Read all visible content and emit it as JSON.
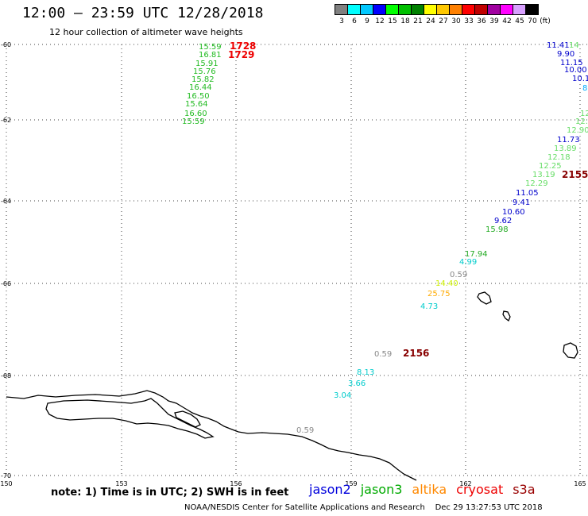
{
  "header": {
    "title": "12:00 – 23:59 UTC 12/28/2018",
    "subtitle": "12 hour collection of altimeter wave heights"
  },
  "legend": {
    "colors": [
      "#808080",
      "#00ffff",
      "#00c8ff",
      "#0000ff",
      "#00ff00",
      "#00c000",
      "#008000",
      "#ffff00",
      "#ffc800",
      "#ff8000",
      "#ff0000",
      "#c00000",
      "#a000a0",
      "#ff00ff",
      "#d8a0ff",
      "#000000"
    ],
    "labels": [
      "3",
      "6",
      "9",
      "12",
      "15",
      "18",
      "21",
      "24",
      "27",
      "30",
      "33",
      "36",
      "39",
      "42",
      "45",
      "70",
      "(ft)"
    ]
  },
  "map": {
    "lat_labels": [
      "-60",
      "-62",
      "-64",
      "-66",
      "-68",
      "-70"
    ],
    "lon_labels": [
      "150",
      "153",
      "156",
      "159",
      "162",
      "165"
    ]
  },
  "observations": [
    {
      "text": "15.59",
      "color": "#22bb22"
    },
    {
      "text": "16.81",
      "color": "#22bb22"
    },
    {
      "text": "15.91",
      "color": "#22bb22"
    },
    {
      "text": "15.76",
      "color": "#22bb22"
    },
    {
      "text": "15.82",
      "color": "#22bb22"
    },
    {
      "text": "16.44",
      "color": "#22bb22"
    },
    {
      "text": "16.50",
      "color": "#22bb22"
    },
    {
      "text": "15.64",
      "color": "#22bb22"
    },
    {
      "text": "16.60",
      "color": "#22bb22"
    },
    {
      "text": "15.59",
      "color": "#22bb22"
    },
    {
      "text": "1728",
      "color": "#ee0000"
    },
    {
      "text": "1729",
      "color": "#ee0000"
    },
    {
      "text": "11.41",
      "color": "#0000cc"
    },
    {
      "text": "14",
      "color": "#66dd66"
    },
    {
      "text": "9.90",
      "color": "#0000cc"
    },
    {
      "text": "11.15",
      "color": "#0000cc"
    },
    {
      "text": "10.00",
      "color": "#0000cc"
    },
    {
      "text": "10.1",
      "color": "#0000cc"
    },
    {
      "text": "8",
      "color": "#00aaff"
    },
    {
      "text": "12",
      "color": "#66dd66"
    },
    {
      "text": "12.",
      "color": "#66dd66"
    },
    {
      "text": "12.90",
      "color": "#66dd66"
    },
    {
      "text": "11.73",
      "color": "#0000cc"
    },
    {
      "text": "13.89",
      "color": "#66dd66"
    },
    {
      "text": "12.18",
      "color": "#66dd66"
    },
    {
      "text": "12.25",
      "color": "#66dd66"
    },
    {
      "text": "13.19",
      "color": "#66dd66"
    },
    {
      "text": "12.29",
      "color": "#66dd66"
    },
    {
      "text": "11.05",
      "color": "#0000cc"
    },
    {
      "text": "9.41",
      "color": "#0000cc"
    },
    {
      "text": "10.60",
      "color": "#0000cc"
    },
    {
      "text": "9.62",
      "color": "#0000cc"
    },
    {
      "text": "15.98",
      "color": "#22aa22"
    },
    {
      "text": "2155",
      "color": "#880000"
    },
    {
      "text": "17.94",
      "color": "#22aa22"
    },
    {
      "text": "4.99",
      "color": "#00cccc"
    },
    {
      "text": "0.59",
      "color": "#888888"
    },
    {
      "text": "14.40",
      "color": "#ccee00"
    },
    {
      "text": "25.75",
      "color": "#ffaa00"
    },
    {
      "text": "4.73",
      "color": "#00cccc"
    },
    {
      "text": "0.59",
      "color": "#888888"
    },
    {
      "text": "2156",
      "color": "#880000"
    },
    {
      "text": "8.13",
      "color": "#00cccc"
    },
    {
      "text": "3.66",
      "color": "#00cccc"
    },
    {
      "text": "3.04",
      "color": "#00cccc"
    },
    {
      "text": "0.59",
      "color": "#888888"
    }
  ],
  "note": "note: 1) Time is in UTC; 2) SWH is in feet",
  "satellites": [
    {
      "name": "jason2",
      "color": "#0000dd"
    },
    {
      "name": "jason3",
      "color": "#00aa00"
    },
    {
      "name": "altika",
      "color": "#ff8800"
    },
    {
      "name": "cryosat",
      "color": "#ee0000"
    },
    {
      "name": "s3a",
      "color": "#990000"
    }
  ],
  "footer": {
    "credit": "NOAA/NESDIS Center for Satellite Applications and Research",
    "timestamp": "Dec 29 13:27:53 UTC 2018"
  }
}
